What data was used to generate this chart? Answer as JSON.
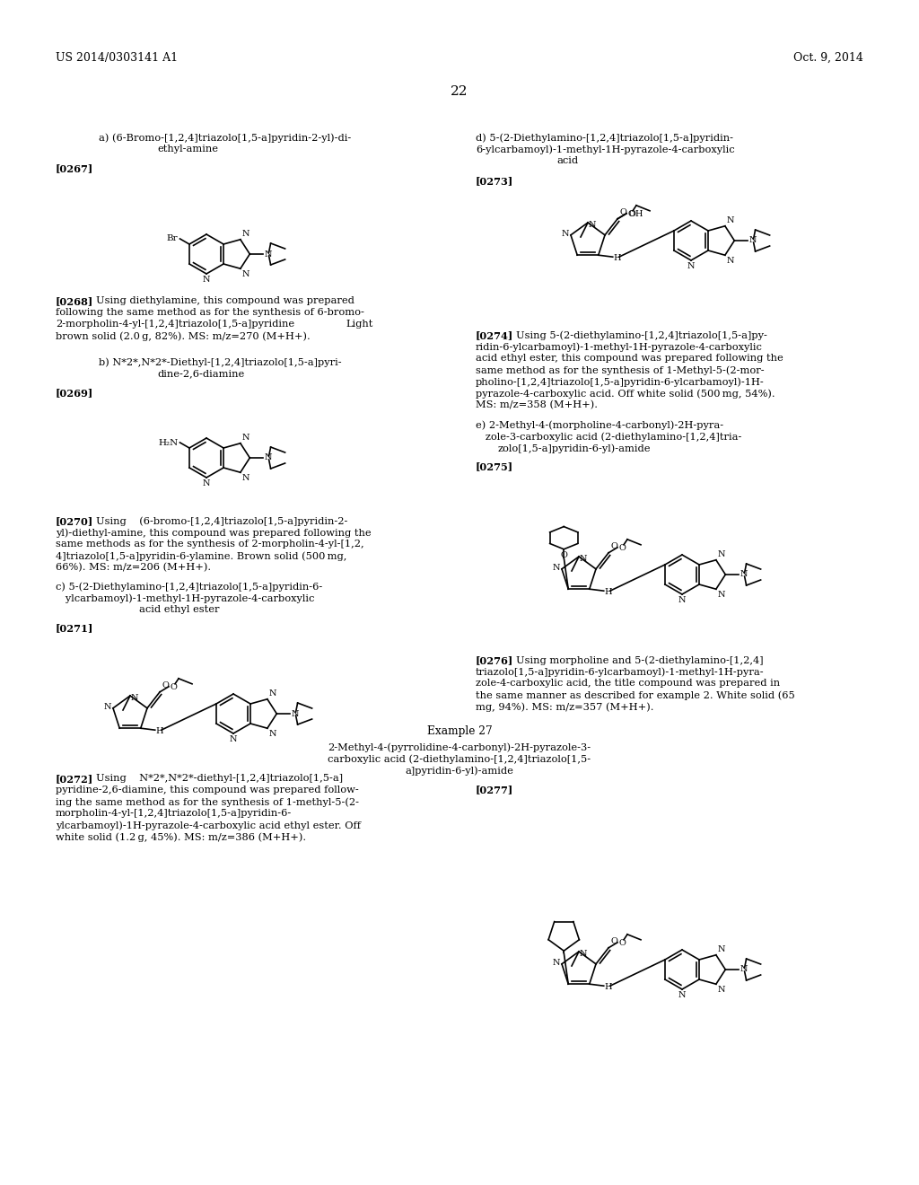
{
  "bg": "#ffffff",
  "header_left": "US 2014/0303141 A1",
  "header_right": "Oct. 9, 2014",
  "page_number": "22"
}
